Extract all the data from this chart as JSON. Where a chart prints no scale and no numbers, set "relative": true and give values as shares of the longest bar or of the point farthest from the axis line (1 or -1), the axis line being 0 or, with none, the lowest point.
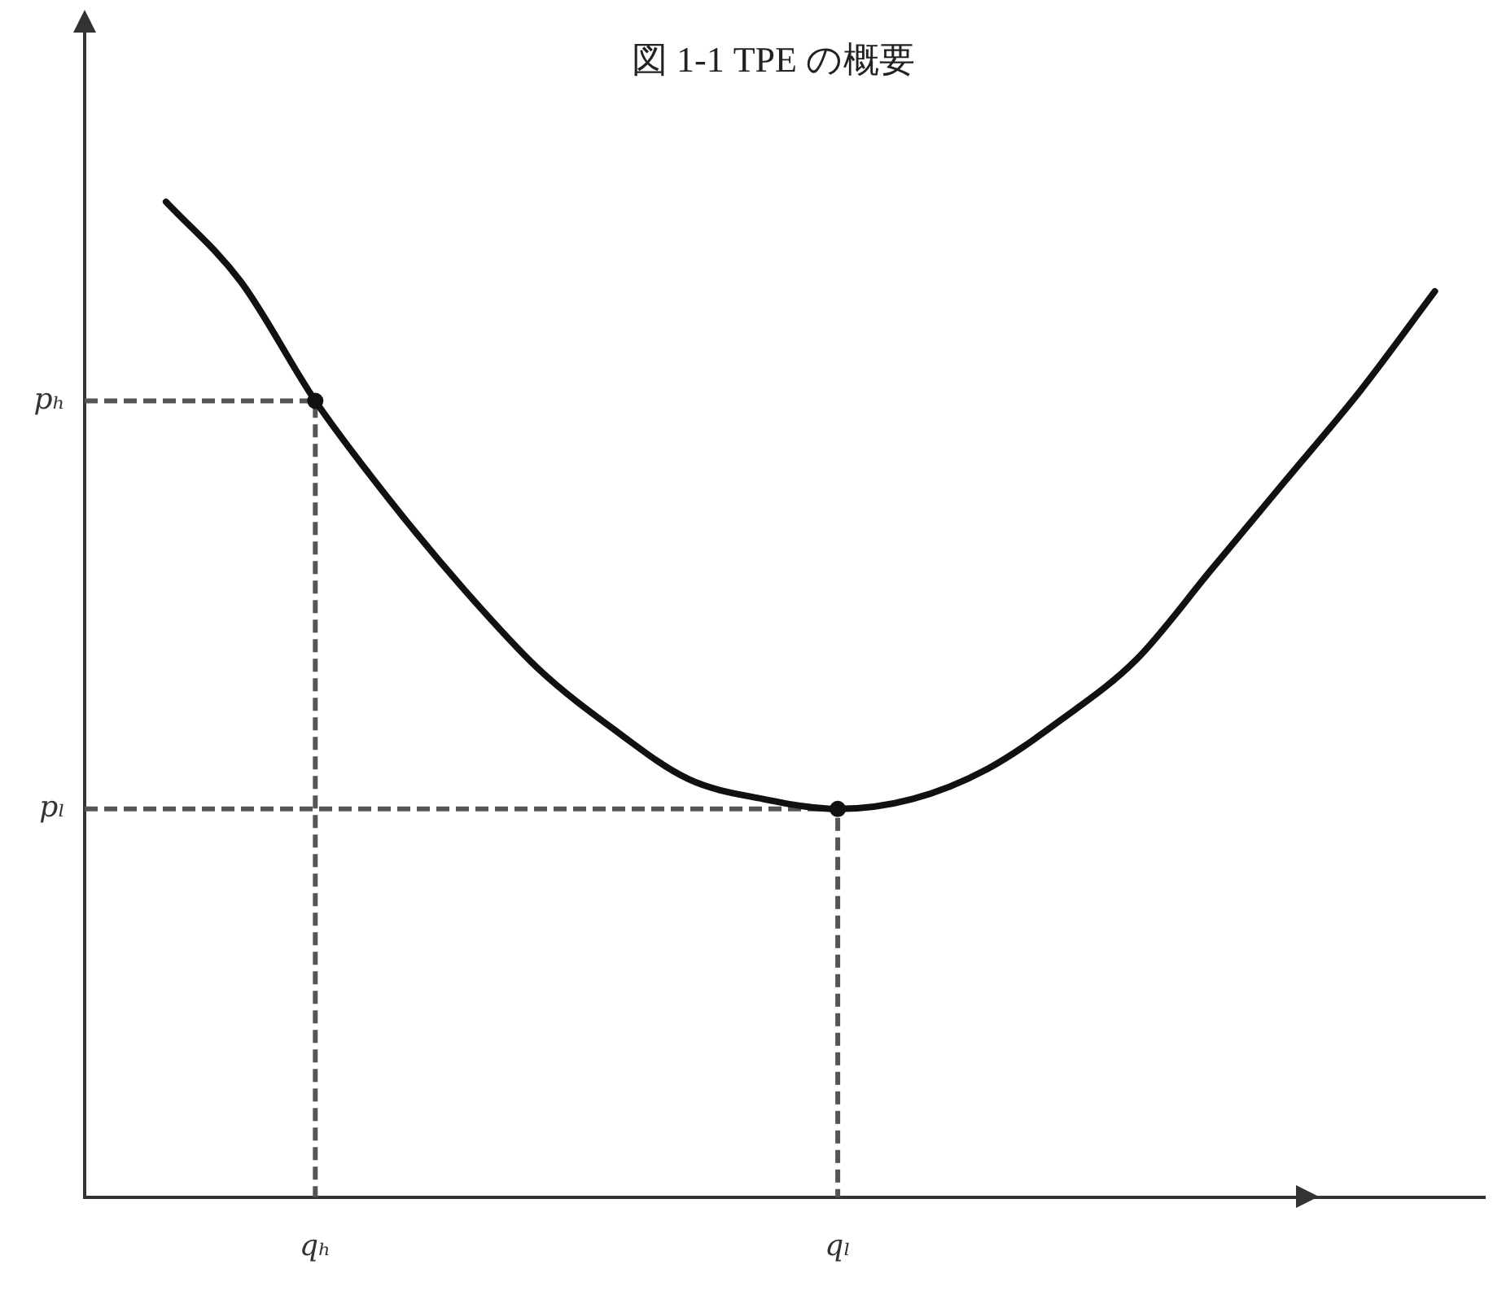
{
  "chart_data": {
    "type": "line",
    "title": "図 1-1 TPE の概要",
    "relative": true,
    "categories": [
      null,
      null,
      "qₕ",
      null,
      null,
      null,
      null,
      null,
      null,
      "qₗ",
      null,
      null,
      null,
      null,
      null,
      null,
      null,
      null
    ],
    "annotations": [
      "pₕ",
      "pₗ"
    ],
    "series": [
      {
        "color": "#111111",
        "marker": "none",
        "line_style": "solid",
        "values": [
          1.0,
          0.92,
          0.8,
          0.7,
          0.61,
          0.53,
          0.47,
          0.42,
          0.4,
          0.39,
          0.4,
          0.43,
          0.48,
          0.54,
          0.63,
          0.72,
          0.81,
          0.91
        ]
      },
      {
        "type": "scatter",
        "color": "#111111",
        "marker": "circle",
        "line_style": "dashed",
        "x": [
          "qₕ",
          "qₗ"
        ],
        "values": [
          0.8,
          0.39
        ]
      }
    ]
  }
}
